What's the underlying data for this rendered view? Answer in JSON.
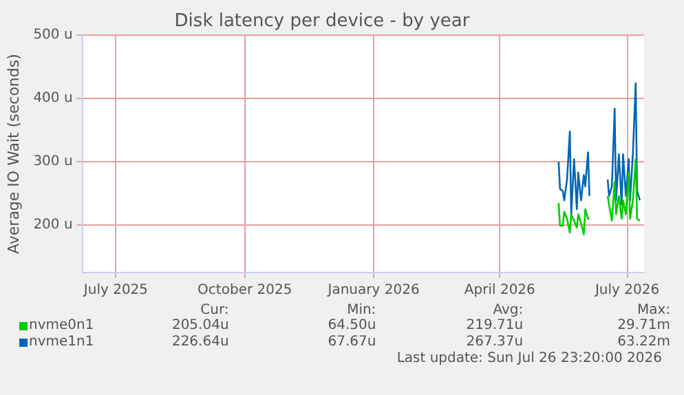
{
  "chart_data": {
    "type": "line",
    "title": "Disk latency per device - by year",
    "ylabel": "Average IO Wait (seconds)",
    "x": [
      "2026-05-13",
      "2026-05-14",
      "2026-05-16",
      "2026-05-17",
      "2026-05-19",
      "2026-05-21",
      "2026-05-22",
      "2026-05-24",
      "2026-05-26",
      "2026-05-27",
      "2026-05-29",
      "2026-05-31",
      "2026-06-01",
      "2026-06-03",
      "2026-06-04",
      "2026-06-10",
      "2026-06-17",
      "2026-06-18",
      "2026-06-20",
      "2026-06-22",
      "2026-06-23",
      "2026-06-25",
      "2026-06-27",
      "2026-06-28",
      "2026-06-30",
      "2026-07-02",
      "2026-07-03",
      "2026-07-05",
      "2026-07-07",
      "2026-07-08",
      "2026-07-10"
    ],
    "series": [
      {
        "name": "nvme0n1",
        "color": "#00cc00",
        "values": [
          235,
          199,
          199,
          221,
          210,
          188,
          217,
          207,
          196,
          217,
          203,
          185,
          225,
          210,
          210,
          null,
          246,
          232,
          207,
          268,
          217,
          246,
          210,
          239,
          217,
          283,
          210,
          239,
          304,
          210,
          207
        ]
      },
      {
        "name": "nvme1n1",
        "color": "#0066b3",
        "values": [
          300,
          257,
          254,
          239,
          272,
          348,
          217,
          304,
          225,
          283,
          239,
          279,
          261,
          315,
          246,
          null,
          272,
          246,
          261,
          384,
          239,
          312,
          232,
          312,
          246,
          304,
          239,
          312,
          424,
          254,
          239
        ]
      }
    ],
    "xlim": [
      "2025-06-07",
      "2026-07-13"
    ],
    "xticks": [
      {
        "value": "2025-07-01",
        "label": "July 2025"
      },
      {
        "value": "2025-10-01",
        "label": "October 2025"
      },
      {
        "value": "2026-01-01",
        "label": "January 2026"
      },
      {
        "value": "2026-04-01",
        "label": "April 2026"
      },
      {
        "value": "2026-07-01",
        "label": "July 2026"
      }
    ],
    "ylim": [
      125,
      500
    ],
    "yticks": [
      {
        "value": 200,
        "label": "200 u"
      },
      {
        "value": 300,
        "label": "300 u"
      },
      {
        "value": 400,
        "label": "400 u"
      },
      {
        "value": 500,
        "label": "500 u"
      }
    ],
    "grid": true,
    "legend": "bottom",
    "marker": "none",
    "line_style": "solid",
    "annotations": [
      "Cur:",
      "Min:",
      "Avg:",
      "Max:",
      "205.04u",
      "64.50u",
      "219.71u",
      "29.71m",
      "226.64u",
      "67.67u",
      "267.37u",
      "63.22m",
      "Last update: Sun Jul 26 23:20:00 2026"
    ]
  }
}
